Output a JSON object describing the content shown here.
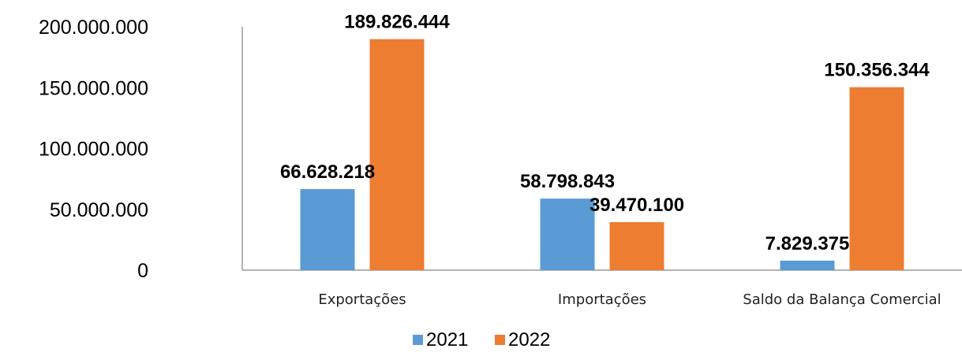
{
  "chart_data": {
    "type": "bar",
    "categories": [
      "Exportações",
      "Importações",
      "Saldo da Balança Comercial"
    ],
    "series": [
      {
        "name": "2021",
        "color": "#5B9BD5",
        "values": [
          66628218,
          58798843,
          7829375
        ],
        "labels": [
          "66.628.218",
          "58.798.843",
          "7.829.375"
        ]
      },
      {
        "name": "2022",
        "color": "#ED7D31",
        "values": [
          189826444,
          39470100,
          150356344
        ],
        "labels": [
          "189.826.444",
          "39.470.100",
          "150.356.344"
        ]
      }
    ],
    "ylim": [
      0,
      200000000
    ],
    "yticks": [
      {
        "value": 0,
        "label": "0"
      },
      {
        "value": 50000000,
        "label": "50.000.000"
      },
      {
        "value": 100000000,
        "label": "100.000.000"
      },
      {
        "value": 150000000,
        "label": "150.000.000"
      },
      {
        "value": 200000000,
        "label": "200.000.000"
      }
    ],
    "grid": false,
    "legend_position": "bottom",
    "title": "",
    "xlabel": "",
    "ylabel": ""
  }
}
